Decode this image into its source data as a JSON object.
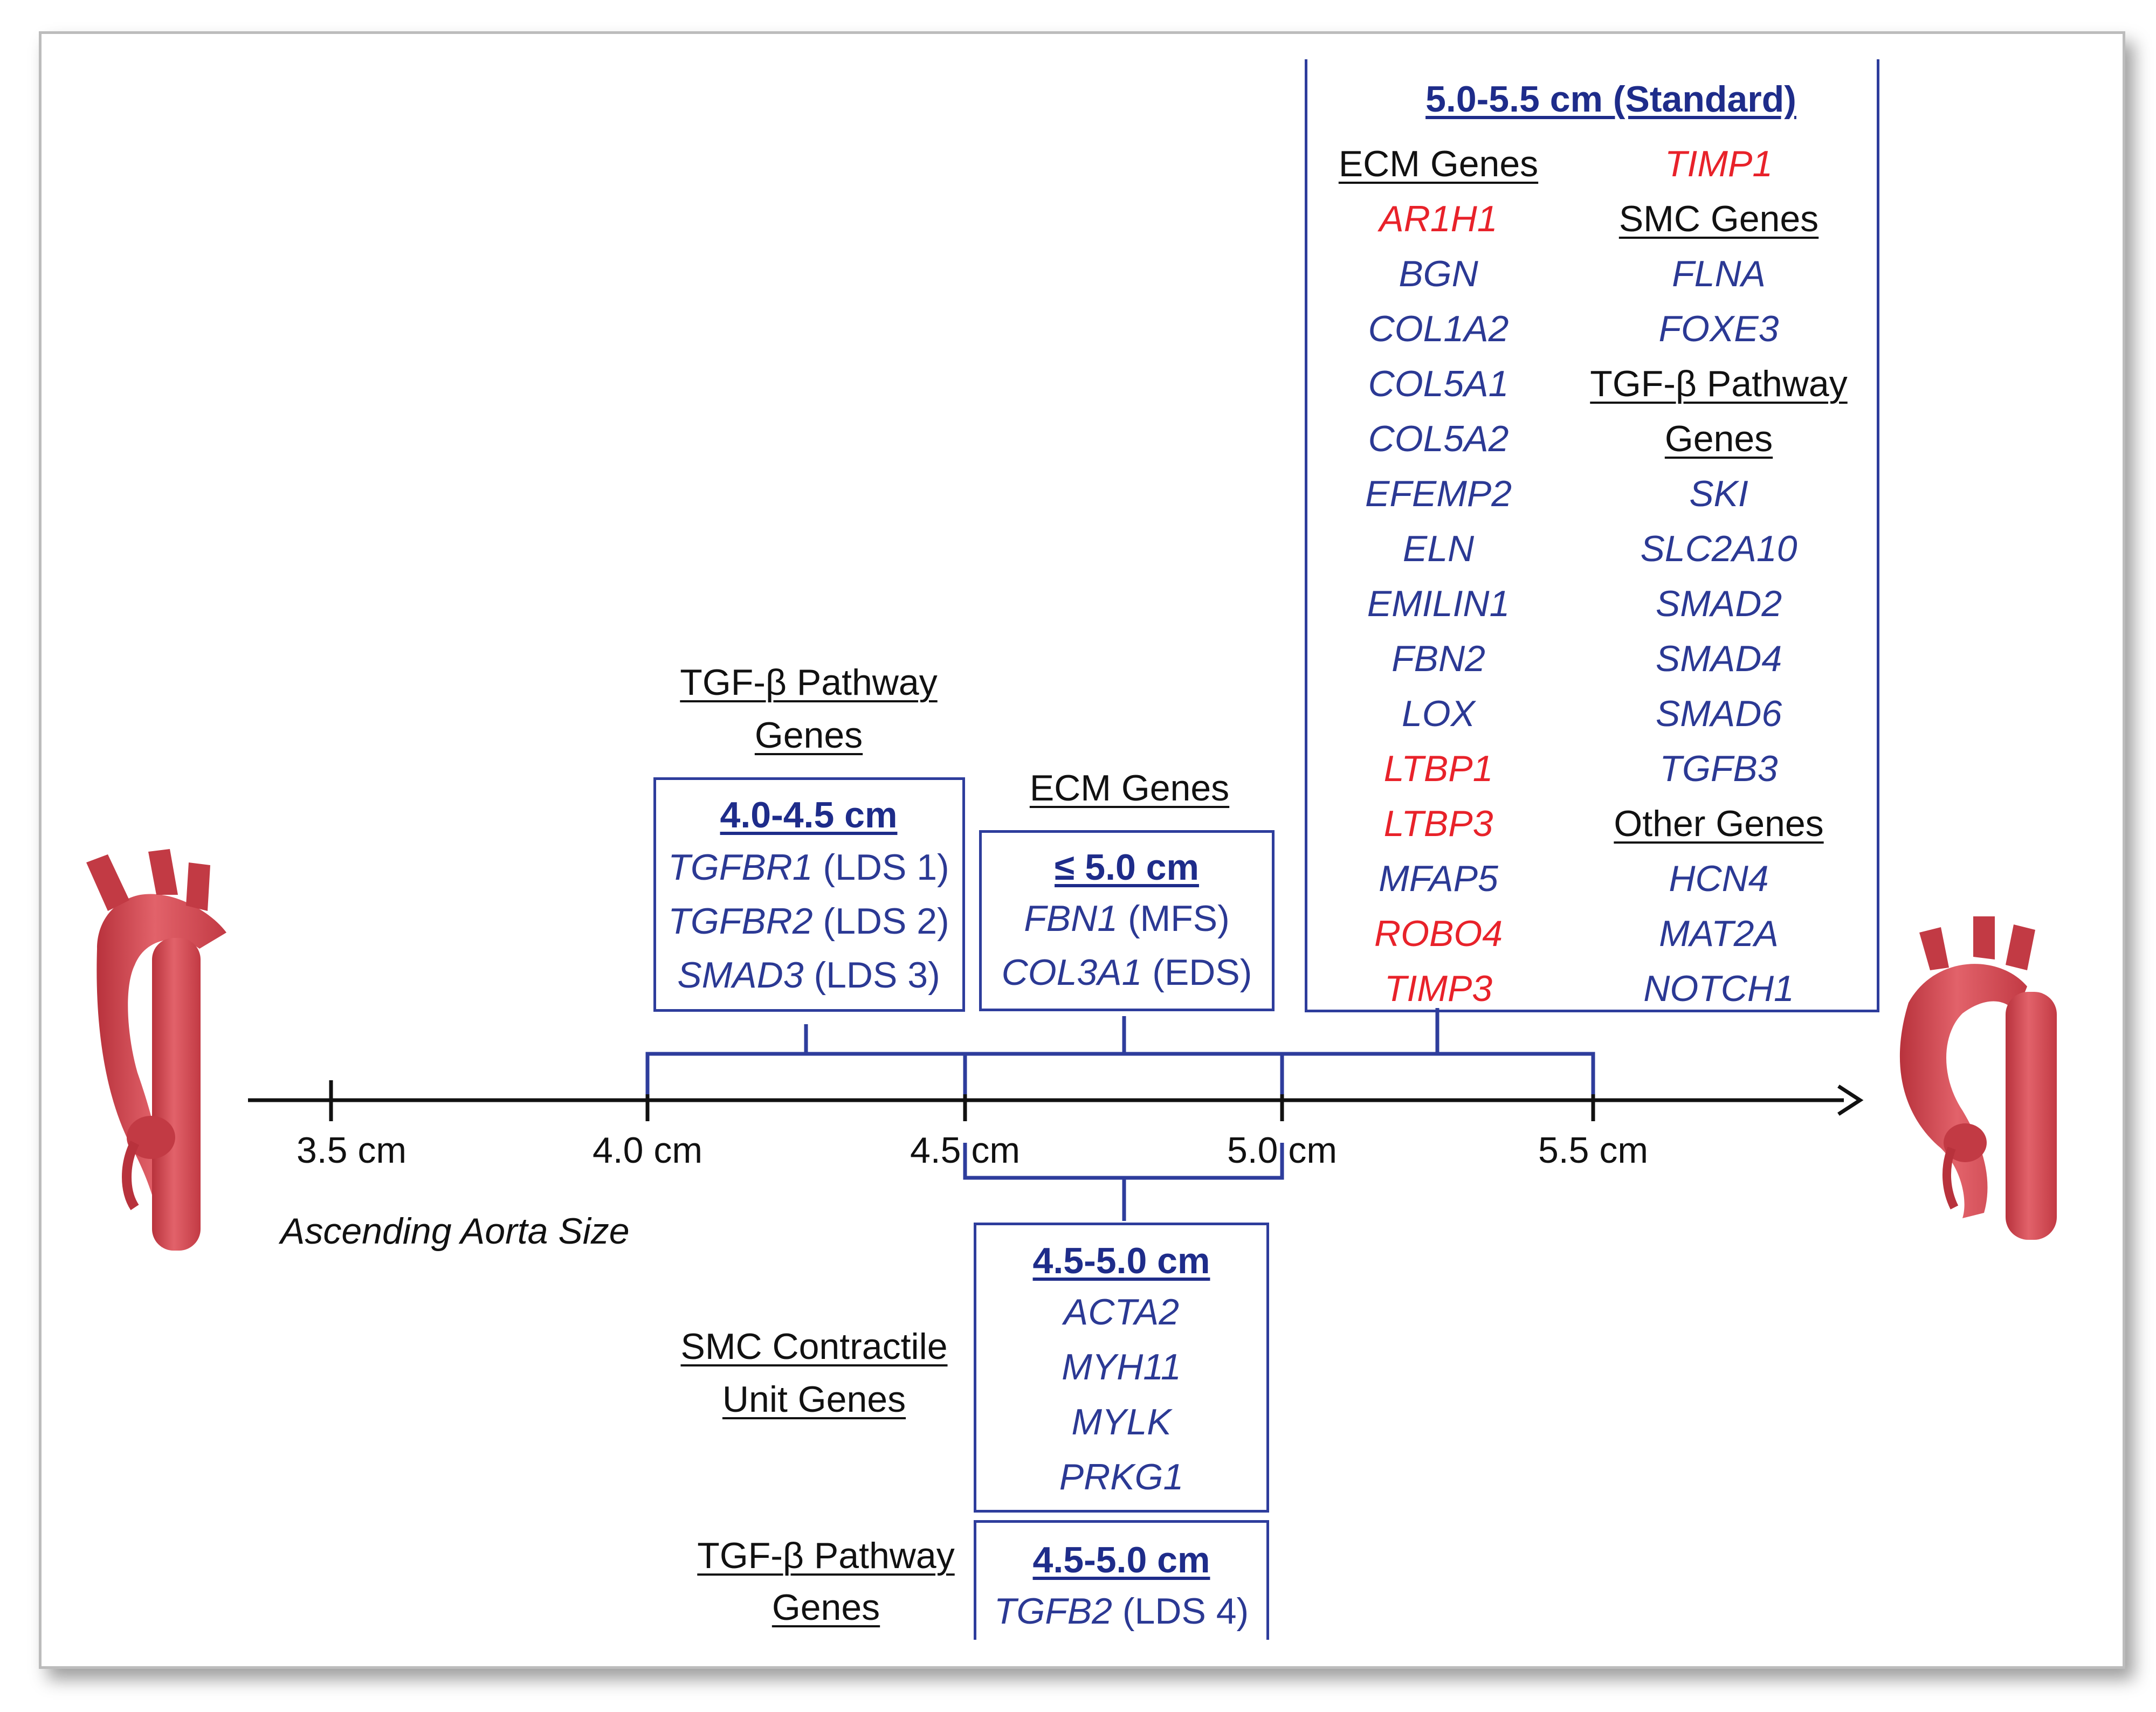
{
  "axis": {
    "title": "Ascending Aorta Size",
    "ticks": [
      {
        "label": "3.5 cm",
        "value": 3.5
      },
      {
        "label": "4.0 cm",
        "value": 4.0
      },
      {
        "label": "4.5 cm",
        "value": 4.5
      },
      {
        "label": "5.0 cm",
        "value": 5.0
      },
      {
        "label": "5.5 cm",
        "value": 5.5
      }
    ]
  },
  "groups": {
    "tgfb_40": {
      "category": [
        "TGF-β Pathway",
        "Genes"
      ],
      "header": "4.0-4.5 cm",
      "genes": [
        {
          "name": "TGFBR1",
          "note": " (LDS 1)"
        },
        {
          "name": "TGFBR2",
          "note": " (LDS 2)"
        },
        {
          "name": "SMAD3",
          "note": " (LDS 3)"
        }
      ]
    },
    "ecm_50": {
      "category": "ECM Genes",
      "header": "≤ 5.0 cm",
      "genes": [
        {
          "name": "FBN1",
          "note": " (MFS)"
        },
        {
          "name": "COL3A1",
          "note": " (EDS)"
        }
      ]
    },
    "standard": {
      "header": "5.0-5.5 cm (Standard)",
      "left_column": [
        {
          "text": "ECM Genes",
          "kind": "category"
        },
        {
          "text": "AR1H1",
          "kind": "gene",
          "color": "#e8222a"
        },
        {
          "text": "BGN",
          "kind": "gene",
          "color": "#2b3994"
        },
        {
          "text": "COL1A2",
          "kind": "gene",
          "color": "#2b3994"
        },
        {
          "text": "COL5A1",
          "kind": "gene",
          "color": "#2b3994"
        },
        {
          "text": "COL5A2",
          "kind": "gene",
          "color": "#2b3994"
        },
        {
          "text": "EFEMP2",
          "kind": "gene",
          "color": "#2b3994"
        },
        {
          "text": "ELN",
          "kind": "gene",
          "color": "#2b3994"
        },
        {
          "text": "EMILIN1",
          "kind": "gene",
          "color": "#2b3994"
        },
        {
          "text": "FBN2",
          "kind": "gene",
          "color": "#2b3994"
        },
        {
          "text": "LOX",
          "kind": "gene",
          "color": "#2b3994"
        },
        {
          "text": "LTBP1",
          "kind": "gene",
          "color": "#e8222a"
        },
        {
          "text": "LTBP3",
          "kind": "gene",
          "color": "#e8222a"
        },
        {
          "text": "MFAP5",
          "kind": "gene",
          "color": "#2b3994"
        },
        {
          "text": "ROBO4",
          "kind": "gene",
          "color": "#e8222a"
        },
        {
          "text": "TIMP3",
          "kind": "gene",
          "color": "#e8222a"
        }
      ],
      "right_column": [
        {
          "text": "TIMP1",
          "kind": "gene",
          "color": "#e8222a"
        },
        {
          "text": "SMC Genes",
          "kind": "category"
        },
        {
          "text": "FLNA",
          "kind": "gene",
          "color": "#2b3994"
        },
        {
          "text": "FOXE3",
          "kind": "gene",
          "color": "#2b3994"
        },
        {
          "text": "TGF-β Pathway",
          "kind": "category"
        },
        {
          "text": "Genes",
          "kind": "category"
        },
        {
          "text": "SKI",
          "kind": "gene",
          "color": "#2b3994"
        },
        {
          "text": "SLC2A10",
          "kind": "gene",
          "color": "#2b3994"
        },
        {
          "text": "SMAD2",
          "kind": "gene",
          "color": "#2b3994"
        },
        {
          "text": "SMAD4",
          "kind": "gene",
          "color": "#2b3994"
        },
        {
          "text": "SMAD6",
          "kind": "gene",
          "color": "#2b3994"
        },
        {
          "text": "TGFB3",
          "kind": "gene",
          "color": "#2b3994"
        },
        {
          "text": "Other Genes",
          "kind": "category"
        },
        {
          "text": "HCN4",
          "kind": "gene",
          "color": "#2b3994"
        },
        {
          "text": "MAT2A",
          "kind": "gene",
          "color": "#2b3994"
        },
        {
          "text": "NOTCH1",
          "kind": "gene",
          "color": "#2b3994"
        }
      ]
    },
    "smc_45": {
      "category": [
        "SMC Contractile",
        "Unit Genes"
      ],
      "header": "4.5-5.0 cm",
      "genes": [
        "ACTA2",
        "MYH11",
        "MYLK",
        "PRKG1"
      ]
    },
    "tgfb_45": {
      "category": [
        "TGF-β Pathway",
        "Genes"
      ],
      "header": "4.5-5.0 cm",
      "genes": [
        {
          "name": "TGFB2",
          "note": " (LDS 4)"
        }
      ]
    }
  },
  "colors": {
    "accent_blue": "#2e3d9c",
    "gene_blue": "#2b3994",
    "gene_red": "#e8222a",
    "aorta": "#d9454f"
  }
}
